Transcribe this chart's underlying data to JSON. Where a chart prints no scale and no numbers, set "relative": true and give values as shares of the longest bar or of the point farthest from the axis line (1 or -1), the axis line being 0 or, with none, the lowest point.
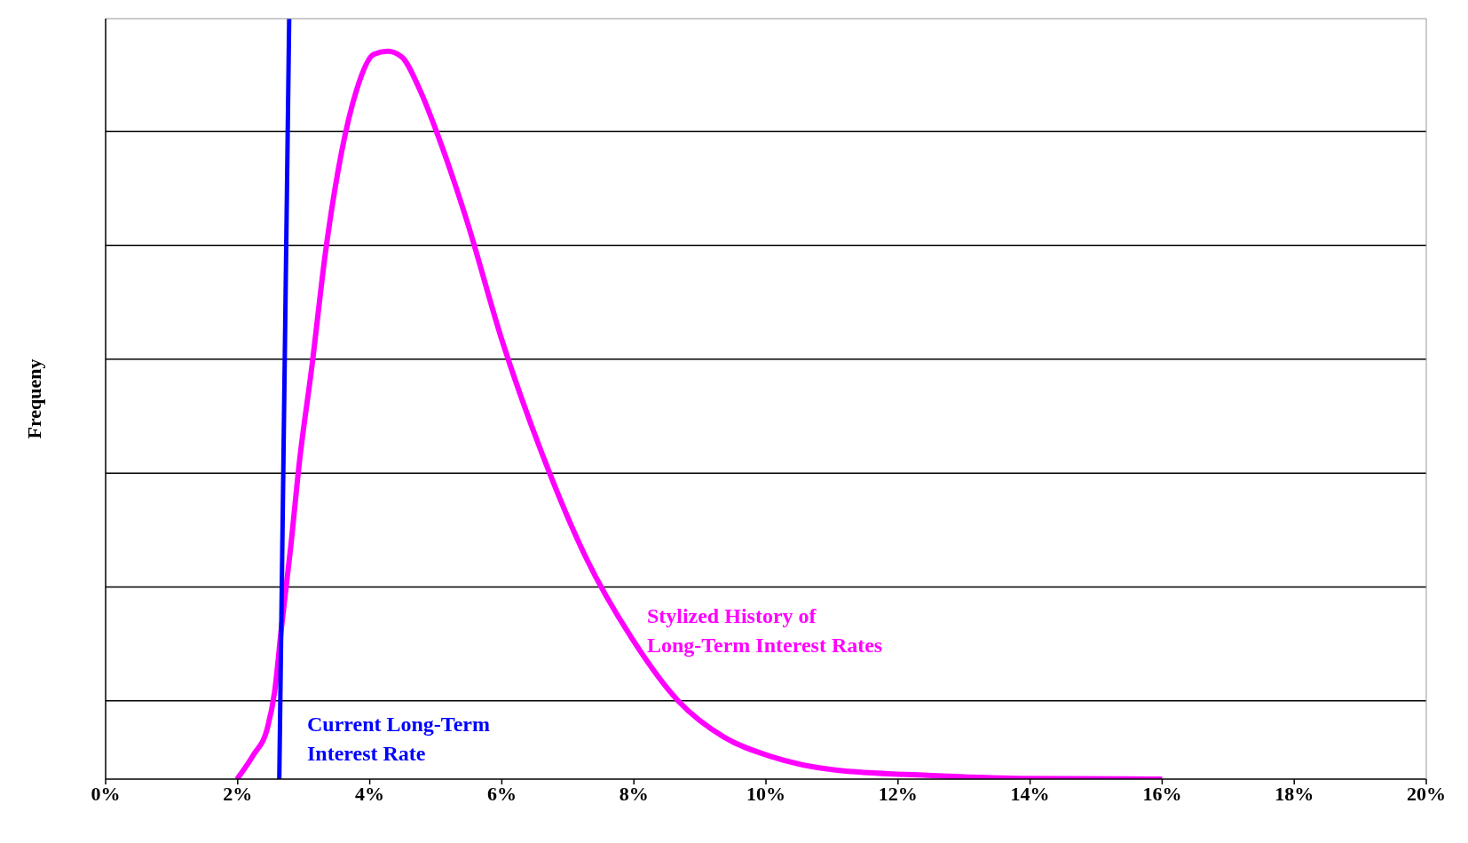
{
  "chart_data": {
    "type": "line",
    "relative": true,
    "ylabel": "Frequeny",
    "xlim": [
      0,
      20
    ],
    "xticks": [
      {
        "value": 0,
        "label": "0%"
      },
      {
        "value": 2,
        "label": "2%"
      },
      {
        "value": 4,
        "label": "4%"
      },
      {
        "value": 6,
        "label": "6%"
      },
      {
        "value": 8,
        "label": "8%"
      },
      {
        "value": 10,
        "label": "10%"
      },
      {
        "value": 12,
        "label": "12%"
      },
      {
        "value": 14,
        "label": "14%"
      },
      {
        "value": 16,
        "label": "16%"
      },
      {
        "value": 18,
        "label": "18%"
      },
      {
        "value": 20,
        "label": "20%"
      }
    ],
    "grid": "y",
    "marker": "none",
    "line_style": "solid",
    "series": [
      {
        "name": "Stylized History of\nLong-Term Interest Rates",
        "color": "#ff00ff",
        "x": [
          1.99,
          2.24,
          2.45,
          2.56,
          2.66,
          2.8,
          2.94,
          3.12,
          3.33,
          3.57,
          3.8,
          4.06,
          4.27,
          4.48,
          4.76,
          5.03,
          5.45,
          6.01,
          6.64,
          7.27,
          7.97,
          8.67,
          9.37,
          10.07,
          11.05,
          12.45,
          13.85,
          16
        ],
        "values": [
          0,
          0.032,
          0.067,
          0.115,
          0.197,
          0.303,
          0.421,
          0.54,
          0.693,
          0.823,
          0.906,
          0.953,
          0.957,
          0.95,
          0.906,
          0.847,
          0.74,
          0.575,
          0.421,
          0.292,
          0.185,
          0.103,
          0.055,
          0.03,
          0.012,
          0.005,
          0.001,
          0
        ]
      },
      {
        "name": "Current Long-Term\nInterest Rate",
        "color": "#0000ff",
        "x": [
          2.63,
          2.78
        ],
        "values": [
          0,
          1
        ]
      }
    ]
  }
}
